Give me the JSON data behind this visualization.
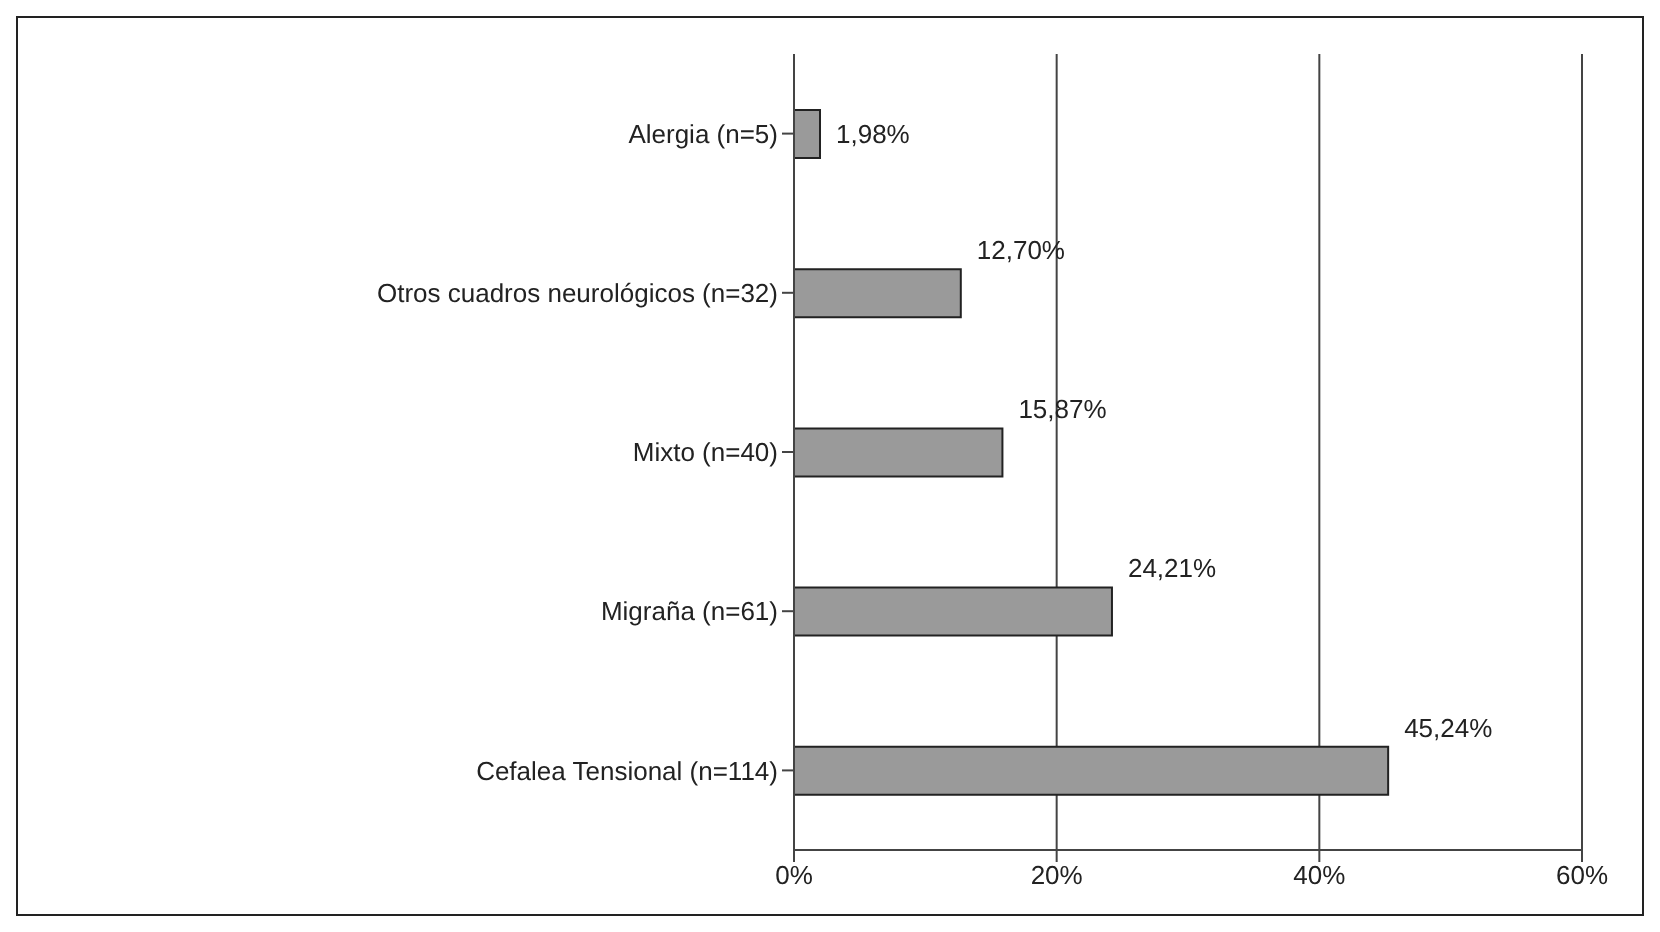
{
  "chart_data": {
    "type": "bar",
    "orientation": "horizontal",
    "categories": [
      "Alergia (n=5)",
      "Otros cuadros neurológicos (n=32)",
      "Mixto (n=40)",
      "Migraña (n=61)",
      "Cefalea Tensional (n=114)"
    ],
    "values": [
      1.98,
      12.7,
      15.87,
      24.21,
      45.24
    ],
    "value_labels": [
      "1,98%",
      "12,70%",
      "15,87%",
      "24,21%",
      "45,24%"
    ],
    "color": "#9a9a9a",
    "xlim": [
      0,
      60
    ],
    "xticks": [
      {
        "value": 0,
        "label": "0%"
      },
      {
        "value": 20,
        "label": "20%"
      },
      {
        "value": 40,
        "label": "40%"
      },
      {
        "value": 60,
        "label": "60%"
      }
    ],
    "grid": "x"
  }
}
